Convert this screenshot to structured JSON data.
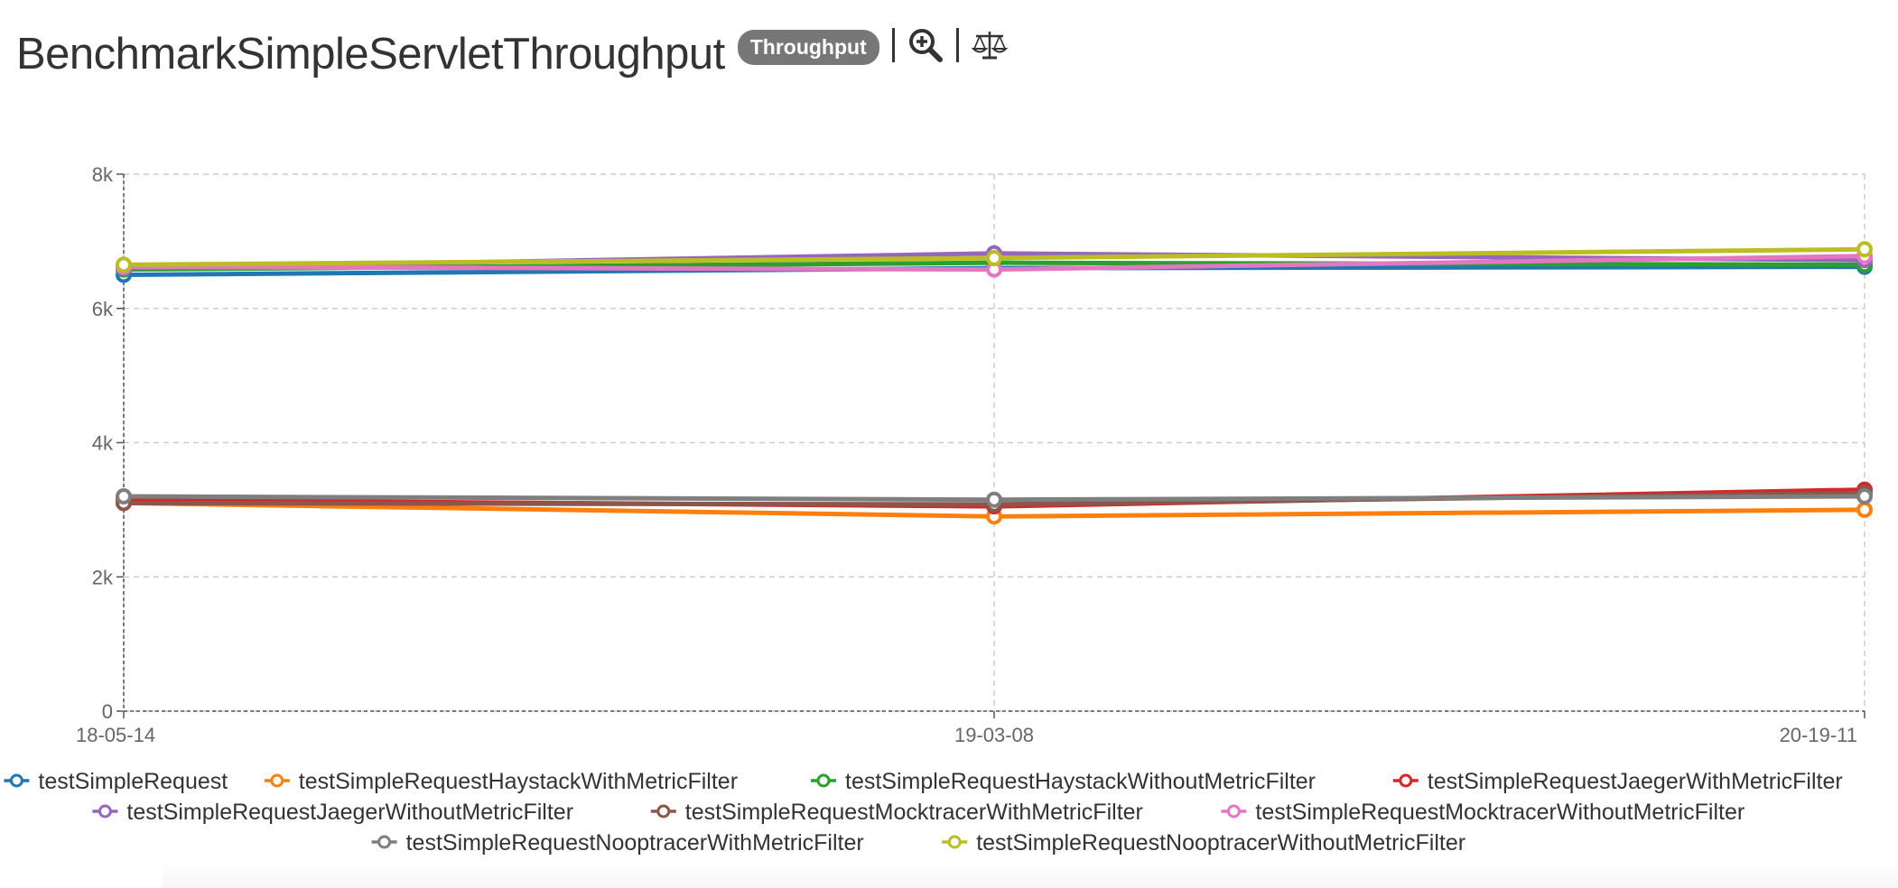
{
  "header": {
    "title": "BenchmarkSimpleServletThroughput",
    "badge": "Throughput",
    "icons": [
      "zoom-in-icon",
      "scale-balance-icon"
    ]
  },
  "chart_data": {
    "type": "line",
    "title": "BenchmarkSimpleServletThroughput",
    "categories": [
      "18-05-14",
      "19-03-08",
      "20-19-11"
    ],
    "ylim": [
      0,
      8000
    ],
    "yticks": [
      0,
      2000,
      4000,
      6000,
      8000
    ],
    "ytick_labels": [
      "0",
      "2k",
      "4k",
      "6k",
      "8k"
    ],
    "grid": true,
    "legend_position": "bottom",
    "series": [
      {
        "name": "testSimpleRequest",
        "color": "#1f77b4",
        "values": [
          6500,
          6600,
          6620
        ]
      },
      {
        "name": "testSimpleRequestHaystackWithMetricFilter",
        "color": "#ff7f0e",
        "values": [
          3100,
          2900,
          3000
        ]
      },
      {
        "name": "testSimpleRequestHaystackWithoutMetricFilter",
        "color": "#2ca02c",
        "values": [
          6580,
          6680,
          6650
        ]
      },
      {
        "name": "testSimpleRequestJaegerWithMetricFilter",
        "color": "#d62728",
        "values": [
          3150,
          3050,
          3300
        ]
      },
      {
        "name": "testSimpleRequestJaegerWithoutMetricFilter",
        "color": "#9467bd",
        "values": [
          6600,
          6820,
          6720
        ]
      },
      {
        "name": "testSimpleRequestMocktracerWithMetricFilter",
        "color": "#8c564b",
        "values": [
          3100,
          3080,
          3250
        ]
      },
      {
        "name": "testSimpleRequestMocktracerWithoutMetricFilter",
        "color": "#e377c2",
        "values": [
          6620,
          6580,
          6780
        ]
      },
      {
        "name": "testSimpleRequestNooptracerWithMetricFilter",
        "color": "#7f7f7f",
        "values": [
          3200,
          3150,
          3200
        ]
      },
      {
        "name": "testSimpleRequestNooptracerWithoutMetricFilter",
        "color": "#bcbd22",
        "values": [
          6650,
          6750,
          6880
        ]
      }
    ]
  }
}
